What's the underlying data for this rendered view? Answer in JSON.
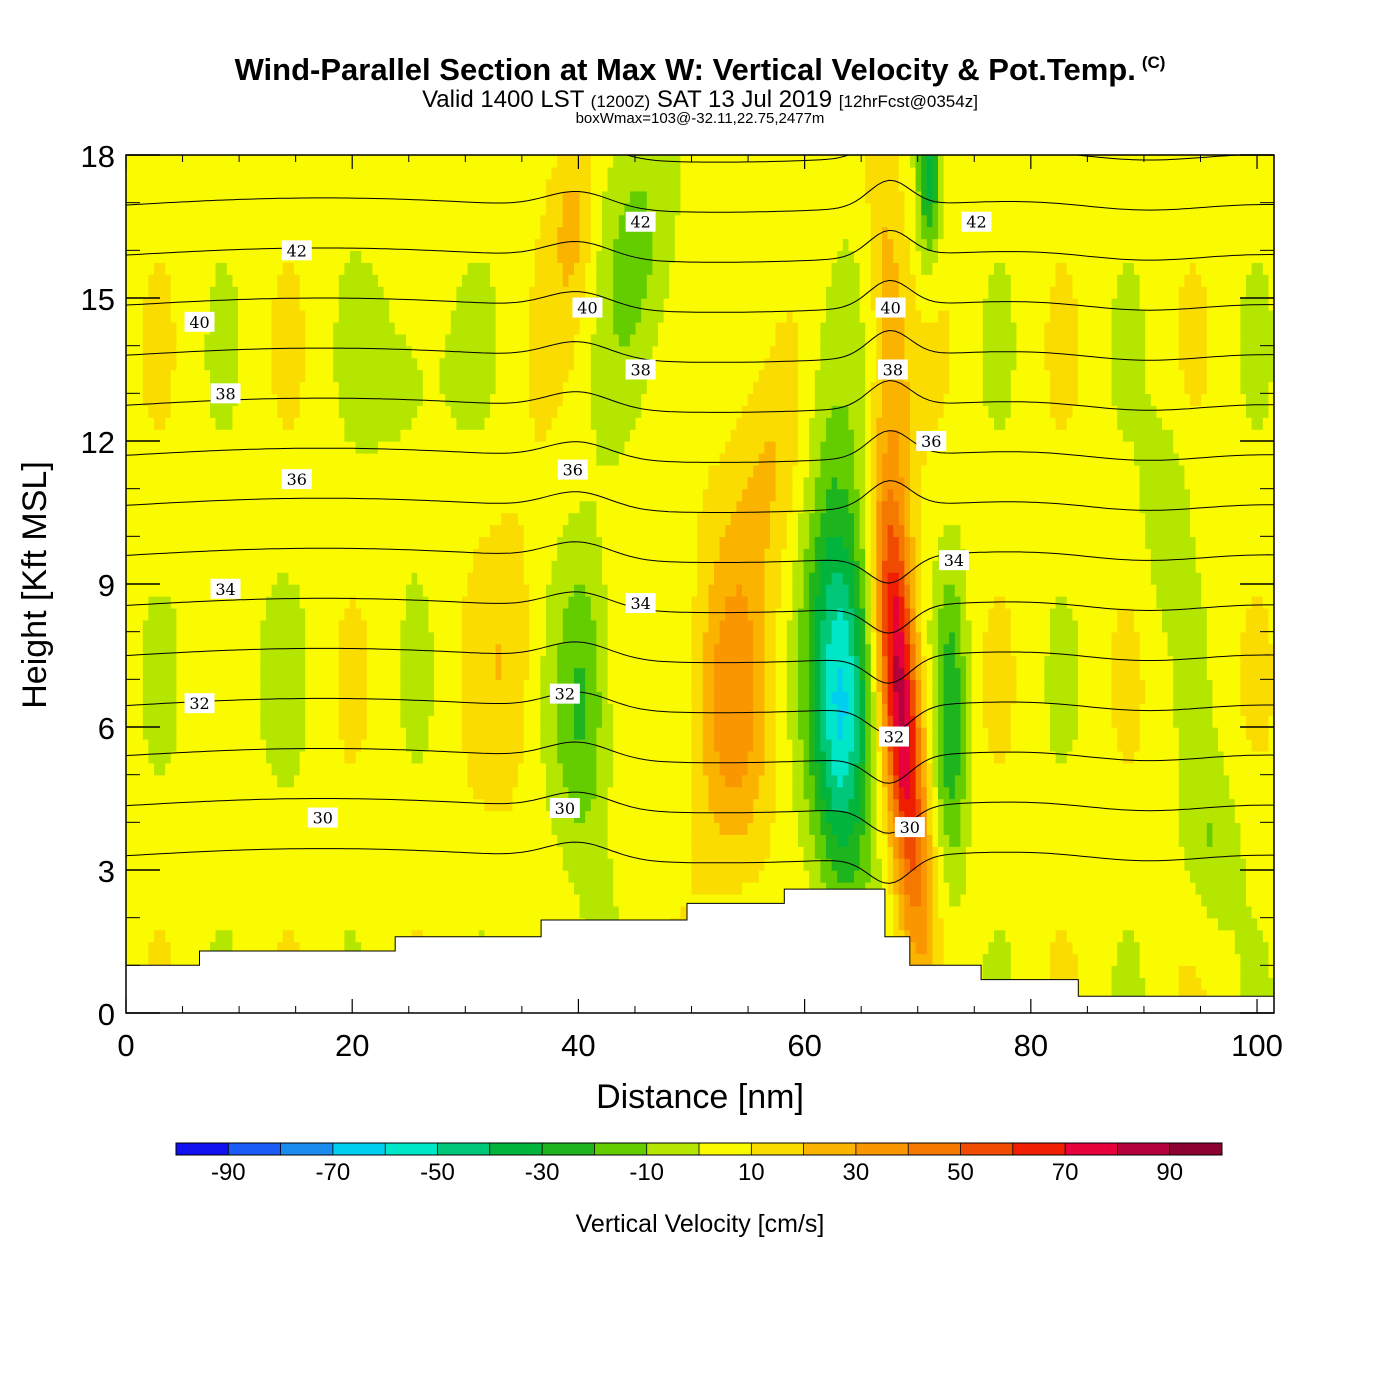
{
  "title": {
    "main": "Wind-Parallel Section at Max W: Vertical Velocity & Pot.Temp.",
    "copyright": "(C)",
    "sub_a": "Valid 1400 LST",
    "sub_b": "(1200Z)",
    "sub_c": "SAT 13 Jul 2019",
    "sub_d": "[12hrFcst@0354z]",
    "box": "boxWmax=103@-32.11,22.75,2477m"
  },
  "chart_data": {
    "type": "heatmap",
    "xlabel": "Distance [nm]",
    "ylabel": "Height [Kft MSL]",
    "xlim": [
      0,
      101.5
    ],
    "ylim": [
      0,
      18
    ],
    "x_ticks": [
      0,
      20,
      40,
      60,
      80,
      100
    ],
    "y_ticks": [
      0,
      3,
      6,
      9,
      12,
      15,
      18
    ],
    "grid": false,
    "colorbar": {
      "label": "Vertical Velocity [cm/s]",
      "placement": "bottom",
      "levels": [
        -100,
        -90,
        -80,
        -70,
        -60,
        -50,
        -40,
        -30,
        -20,
        -10,
        0,
        10,
        20,
        30,
        40,
        50,
        60,
        70,
        80,
        90,
        100
      ],
      "tick_labels": [
        "-90",
        "-70",
        "-50",
        "-30",
        "-10",
        "10",
        "30",
        "50",
        "70",
        "90"
      ],
      "colors": [
        "#1010f0",
        "#1a5cf5",
        "#1a8cf0",
        "#00cfef",
        "#00e6c8",
        "#00c878",
        "#00b43c",
        "#1eb41e",
        "#64cd00",
        "#b4e600",
        "#fafa00",
        "#fadc00",
        "#fab400",
        "#fa9600",
        "#f57800",
        "#f04b00",
        "#f01e00",
        "#e6003c",
        "#b4003c",
        "#8c0032"
      ]
    },
    "terrain": [
      [
        0,
        1.0
      ],
      [
        6.5,
        1.0
      ],
      [
        6.5,
        1.3
      ],
      [
        23.8,
        1.3
      ],
      [
        23.8,
        1.6
      ],
      [
        36.7,
        1.6
      ],
      [
        36.7,
        1.95
      ],
      [
        49.6,
        1.95
      ],
      [
        49.6,
        2.3
      ],
      [
        58.2,
        2.3
      ],
      [
        58.2,
        2.6
      ],
      [
        67.1,
        2.6
      ],
      [
        67.1,
        1.6
      ],
      [
        69.3,
        1.6
      ],
      [
        69.3,
        1.0
      ],
      [
        75.6,
        1.0
      ],
      [
        75.6,
        0.7
      ],
      [
        84.2,
        0.7
      ],
      [
        84.2,
        0.35
      ],
      [
        101.5,
        0.35
      ]
    ],
    "theta_contour_interval": 1,
    "theta_range": [
      29,
      44
    ],
    "theta_labels": [
      {
        "text": "42",
        "x": 15.1,
        "y": 16.0
      },
      {
        "text": "42",
        "x": 45.5,
        "y": 16.6
      },
      {
        "text": "42",
        "x": 75.2,
        "y": 16.6
      },
      {
        "text": "40",
        "x": 6.5,
        "y": 14.5
      },
      {
        "text": "40",
        "x": 40.8,
        "y": 14.8
      },
      {
        "text": "40",
        "x": 67.6,
        "y": 14.8
      },
      {
        "text": "38",
        "x": 8.8,
        "y": 13.0
      },
      {
        "text": "38",
        "x": 45.5,
        "y": 13.5
      },
      {
        "text": "38",
        "x": 67.8,
        "y": 13.5
      },
      {
        "text": "36",
        "x": 15.1,
        "y": 11.2
      },
      {
        "text": "36",
        "x": 39.5,
        "y": 11.4
      },
      {
        "text": "36",
        "x": 71.2,
        "y": 12.0
      },
      {
        "text": "34",
        "x": 8.8,
        "y": 8.9
      },
      {
        "text": "34",
        "x": 45.5,
        "y": 8.6
      },
      {
        "text": "34",
        "x": 73.2,
        "y": 9.5
      },
      {
        "text": "32",
        "x": 6.5,
        "y": 6.5
      },
      {
        "text": "32",
        "x": 38.8,
        "y": 6.7
      },
      {
        "text": "32",
        "x": 67.9,
        "y": 5.8
      },
      {
        "text": "30",
        "x": 17.4,
        "y": 4.1
      },
      {
        "text": "30",
        "x": 38.8,
        "y": 4.3
      },
      {
        "text": "30",
        "x": 69.3,
        "y": 3.9
      }
    ],
    "max_w": 103,
    "max_w_location": {
      "lat": -32.11,
      "lon": 22.75,
      "height_m": 2477
    }
  }
}
